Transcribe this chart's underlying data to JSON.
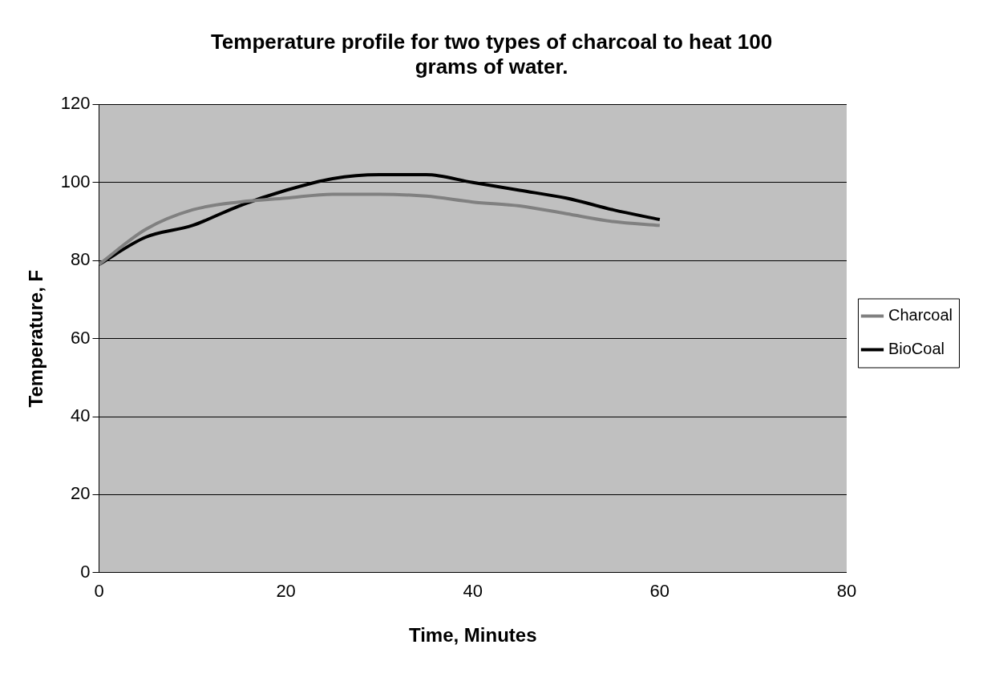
{
  "chart_data": {
    "type": "line",
    "title": "Temperature profile for two types of charcoal to heat 100 grams of water.",
    "xlabel": "Time, Minutes",
    "ylabel": "Temperature, F",
    "x": [
      0,
      5,
      10,
      15,
      20,
      25,
      30,
      35,
      40,
      45,
      50,
      55,
      60
    ],
    "series": [
      {
        "name": "Charcoal",
        "color": "#808080",
        "values": [
          79,
          88,
          93,
          95,
          96,
          97,
          97,
          96.5,
          95,
          94,
          92,
          90,
          89
        ]
      },
      {
        "name": "BioCoal",
        "color": "#000000",
        "values": [
          79,
          86,
          89,
          94,
          98,
          101,
          102,
          102,
          100,
          98,
          96,
          93,
          90.5
        ]
      }
    ],
    "xlim": [
      0,
      80
    ],
    "xticks": [
      0,
      20,
      40,
      60,
      80
    ],
    "ylim": [
      0,
      120
    ],
    "yticks": [
      0,
      20,
      40,
      60,
      80,
      100,
      120
    ],
    "grid": "y",
    "legend": "right",
    "marker": "none",
    "line_style": "solid"
  }
}
